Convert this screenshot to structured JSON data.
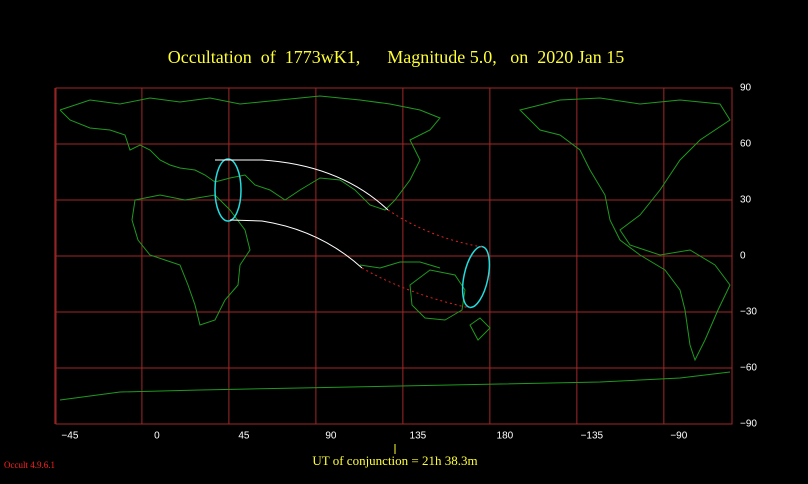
{
  "title": "Occultation  of  1773wK1,      Magnitude 5.0,   on  2020 Jan 15",
  "map": {
    "xlim": [
      -52.2,
      297.5
    ],
    "ylim": [
      -90,
      90
    ],
    "xticks": [
      {
        "value": -45,
        "label": "−45"
      },
      0,
      45,
      90,
      135,
      180,
      {
        "value": 225,
        "label": "−135"
      },
      {
        "value": 270,
        "label": "−90"
      }
    ],
    "yticks": [
      90,
      60,
      30,
      0,
      {
        "value": -30,
        "label": "−30"
      },
      {
        "value": -60,
        "label": "−60"
      },
      {
        "value": -90,
        "label": "−90"
      }
    ]
  },
  "footer": "UT of conjunction = 21h 38.3m",
  "version": "Occult 4.9.6.1"
}
